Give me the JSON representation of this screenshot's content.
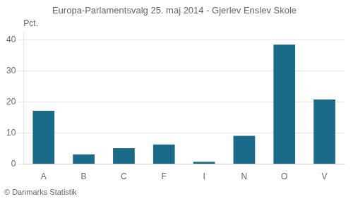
{
  "chart_data": {
    "type": "bar",
    "title": "Europa-Parlamentsvalg 25. maj 2014 - Gjerlev Enslev Skole",
    "categories": [
      "A",
      "B",
      "C",
      "F",
      "I",
      "N",
      "O",
      "V"
    ],
    "values": [
      17.2,
      3.1,
      5.1,
      6.3,
      0.7,
      9.1,
      38.5,
      20.8
    ],
    "color": "#1a6b8a",
    "ylabel": "Pct.",
    "ylim": [
      0,
      43
    ],
    "yticks": [
      0,
      10,
      20,
      30,
      40
    ],
    "grid": true,
    "annotations": [
      "© Danmarks Statistik"
    ]
  }
}
